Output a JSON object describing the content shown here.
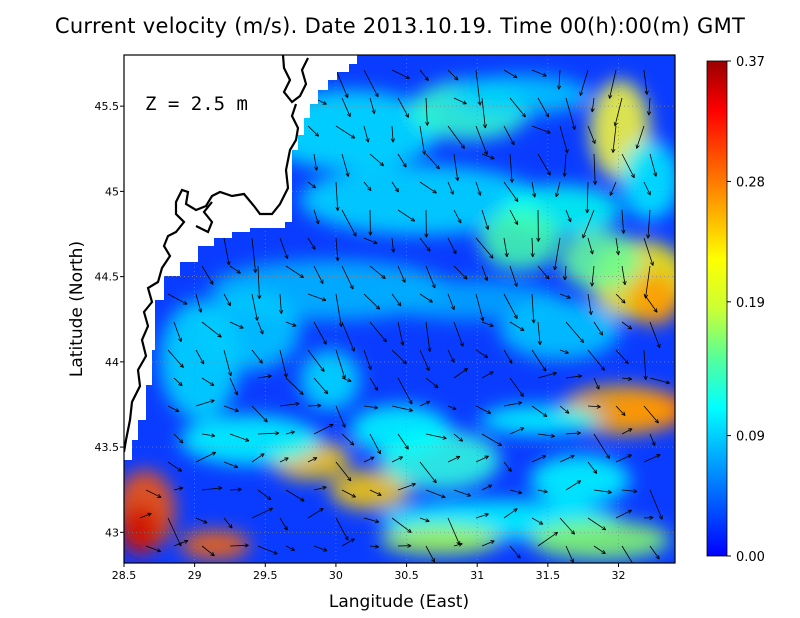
{
  "map": {
    "title": "Current velocity (m/s). Date 2013.10.19. Time 00(h):00(m) GMT",
    "xlabel": "Langitude (East)",
    "ylabel": "Latitude (North)",
    "depth_label": "Z = 2.5 m",
    "extent": {
      "lon": [
        28.5,
        32.4
      ],
      "lat": [
        42.82,
        45.8
      ]
    },
    "x_ticks": [
      "28.5",
      "29",
      "29.5",
      "30",
      "30.5",
      "31",
      "31.5",
      "32"
    ],
    "x_tick_values": [
      28.5,
      29,
      29.5,
      30,
      30.5,
      31,
      31.5,
      32
    ],
    "y_ticks": [
      "43",
      "43.5",
      "44",
      "44.5",
      "45",
      "45.5"
    ],
    "y_tick_values": [
      43,
      43.5,
      44,
      44.5,
      45,
      45.5
    ],
    "colorbar": {
      "ticks": [
        "0.37",
        "0.28",
        "0.19",
        "0.09",
        "0.00"
      ],
      "tick_values": [
        0.37,
        0.28,
        0.19,
        0.09,
        0.0
      ],
      "range": [
        0.0,
        0.37
      ],
      "colors": [
        "#0000ff",
        "#0055ff",
        "#00aaff",
        "#00ffff",
        "#55ff99",
        "#ccff33",
        "#ffff00",
        "#ffaa00",
        "#ff5500",
        "#ff0000",
        "#990000"
      ]
    },
    "land_color": "#ffffff",
    "coast_color": "#000000"
  }
}
